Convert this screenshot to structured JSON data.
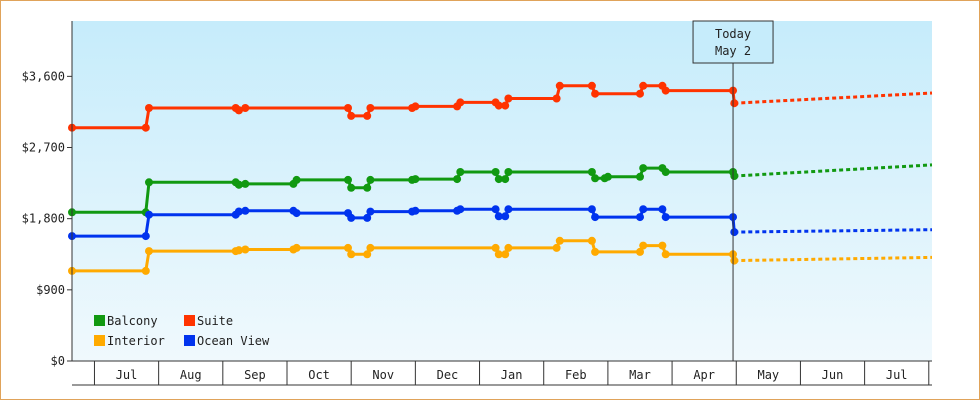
{
  "chart_data": {
    "type": "line",
    "title": "",
    "xlabel": "",
    "ylabel": "",
    "ylim": [
      0,
      4300
    ],
    "yticks": [
      0,
      900,
      1800,
      2700,
      3600
    ],
    "ytick_labels": [
      "$0",
      "$900",
      "$1,800",
      "$2,700",
      "$3,600"
    ],
    "month_labels": [
      "Jul",
      "Aug",
      "Sep",
      "Oct",
      "Nov",
      "Dec",
      "Jan",
      "Feb",
      "Mar",
      "Apr",
      "May",
      "Jun",
      "Jul"
    ],
    "xlim": [
      0,
      13.4
    ],
    "grid": false,
    "legend_position": "bottom-left",
    "today": {
      "x": 10.3,
      "line1": "Today",
      "line2": "May 2"
    },
    "series": [
      {
        "name": "Suite",
        "color": "#ff3300",
        "points": [
          [
            0,
            2950
          ],
          [
            1.15,
            2950
          ],
          [
            1.2,
            3200
          ],
          [
            2.55,
            3200
          ],
          [
            2.6,
            3170
          ],
          [
            2.7,
            3200
          ],
          [
            4.3,
            3200
          ],
          [
            4.35,
            3100
          ],
          [
            4.6,
            3100
          ],
          [
            4.65,
            3200
          ],
          [
            5.3,
            3200
          ],
          [
            5.35,
            3220
          ],
          [
            6.0,
            3220
          ],
          [
            6.05,
            3270
          ],
          [
            6.6,
            3270
          ],
          [
            6.65,
            3230
          ],
          [
            6.75,
            3230
          ],
          [
            6.8,
            3320
          ],
          [
            7.55,
            3320
          ],
          [
            7.6,
            3480
          ],
          [
            8.1,
            3480
          ],
          [
            8.15,
            3380
          ],
          [
            8.85,
            3380
          ],
          [
            8.9,
            3480
          ],
          [
            9.2,
            3480
          ],
          [
            9.25,
            3420
          ],
          [
            10.3,
            3420
          ],
          [
            10.32,
            3260
          ]
        ],
        "forecast": [
          [
            10.32,
            3260
          ],
          [
            13.4,
            3390
          ]
        ]
      },
      {
        "name": "Balcony",
        "color": "#119911",
        "points": [
          [
            0,
            1880
          ],
          [
            1.15,
            1880
          ],
          [
            1.2,
            2260
          ],
          [
            2.55,
            2260
          ],
          [
            2.6,
            2230
          ],
          [
            2.7,
            2240
          ],
          [
            3.45,
            2240
          ],
          [
            3.5,
            2290
          ],
          [
            4.3,
            2290
          ],
          [
            4.35,
            2190
          ],
          [
            4.6,
            2190
          ],
          [
            4.65,
            2290
          ],
          [
            5.3,
            2290
          ],
          [
            5.35,
            2300
          ],
          [
            6.0,
            2300
          ],
          [
            6.05,
            2390
          ],
          [
            6.6,
            2390
          ],
          [
            6.65,
            2300
          ],
          [
            6.75,
            2300
          ],
          [
            6.8,
            2390
          ],
          [
            8.1,
            2390
          ],
          [
            8.15,
            2310
          ],
          [
            8.3,
            2310
          ],
          [
            8.35,
            2330
          ],
          [
            8.85,
            2330
          ],
          [
            8.9,
            2440
          ],
          [
            9.2,
            2440
          ],
          [
            9.25,
            2390
          ],
          [
            10.3,
            2390
          ],
          [
            10.32,
            2340
          ]
        ],
        "forecast": [
          [
            10.32,
            2340
          ],
          [
            13.4,
            2480
          ]
        ]
      },
      {
        "name": "Ocean View",
        "color": "#0033ee",
        "points": [
          [
            0,
            1580
          ],
          [
            1.15,
            1580
          ],
          [
            1.2,
            1850
          ],
          [
            2.55,
            1850
          ],
          [
            2.6,
            1890
          ],
          [
            2.7,
            1900
          ],
          [
            3.45,
            1900
          ],
          [
            3.5,
            1870
          ],
          [
            4.3,
            1870
          ],
          [
            4.35,
            1810
          ],
          [
            4.6,
            1810
          ],
          [
            4.65,
            1890
          ],
          [
            5.3,
            1890
          ],
          [
            5.35,
            1900
          ],
          [
            6.0,
            1900
          ],
          [
            6.05,
            1920
          ],
          [
            6.6,
            1920
          ],
          [
            6.65,
            1830
          ],
          [
            6.75,
            1830
          ],
          [
            6.8,
            1920
          ],
          [
            8.1,
            1920
          ],
          [
            8.15,
            1820
          ],
          [
            8.85,
            1820
          ],
          [
            8.9,
            1920
          ],
          [
            9.2,
            1920
          ],
          [
            9.25,
            1820
          ],
          [
            10.3,
            1820
          ],
          [
            10.32,
            1630
          ]
        ],
        "forecast": [
          [
            10.32,
            1630
          ],
          [
            13.4,
            1660
          ]
        ]
      },
      {
        "name": "Interior",
        "color": "#ffaa00",
        "points": [
          [
            0,
            1140
          ],
          [
            1.15,
            1140
          ],
          [
            1.2,
            1390
          ],
          [
            2.55,
            1390
          ],
          [
            2.6,
            1400
          ],
          [
            2.7,
            1410
          ],
          [
            3.45,
            1410
          ],
          [
            3.5,
            1430
          ],
          [
            4.3,
            1430
          ],
          [
            4.35,
            1350
          ],
          [
            4.6,
            1350
          ],
          [
            4.65,
            1430
          ],
          [
            5.3,
            1430
          ],
          [
            5.35,
            1430
          ],
          [
            6.6,
            1430
          ],
          [
            6.65,
            1350
          ],
          [
            6.75,
            1350
          ],
          [
            6.8,
            1430
          ],
          [
            7.55,
            1430
          ],
          [
            7.6,
            1520
          ],
          [
            8.1,
            1520
          ],
          [
            8.15,
            1380
          ],
          [
            8.85,
            1380
          ],
          [
            8.9,
            1460
          ],
          [
            9.2,
            1460
          ],
          [
            9.25,
            1350
          ],
          [
            10.3,
            1350
          ],
          [
            10.32,
            1270
          ]
        ],
        "forecast": [
          [
            10.32,
            1270
          ],
          [
            13.4,
            1310
          ]
        ]
      }
    ],
    "legend": [
      {
        "name": "Balcony",
        "color": "#119911"
      },
      {
        "name": "Suite",
        "color": "#ff3300"
      },
      {
        "name": "Interior",
        "color": "#ffaa00"
      },
      {
        "name": "Ocean View",
        "color": "#0033ee"
      }
    ]
  }
}
